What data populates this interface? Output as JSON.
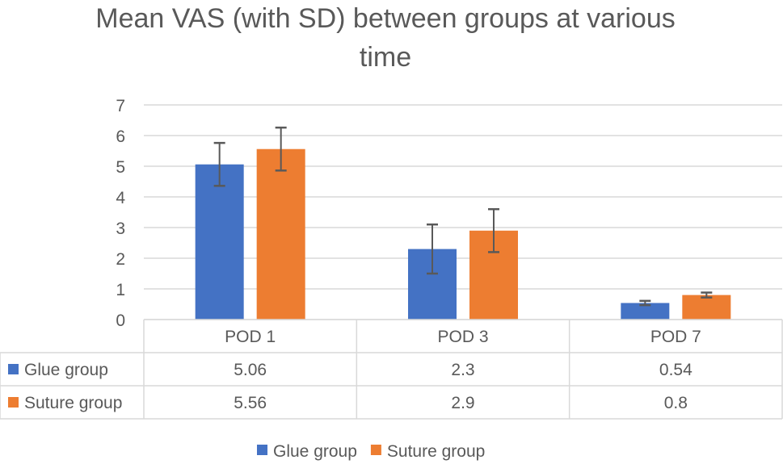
{
  "chart_data": {
    "type": "bar",
    "title": "Mean VAS (with SD) between groups at various time",
    "categories": [
      "POD 1",
      "POD 3",
      "POD 7"
    ],
    "series": [
      {
        "name": "Glue group",
        "values": [
          5.06,
          2.3,
          0.54
        ],
        "sd": [
          0.7,
          0.8,
          0.07
        ],
        "color": "#4472C4"
      },
      {
        "name": "Suture group",
        "values": [
          5.56,
          2.9,
          0.8
        ],
        "sd": [
          0.7,
          0.7,
          0.08
        ],
        "color": "#ED7D31"
      }
    ],
    "ylim": [
      0,
      7
    ],
    "yticks": [
      0,
      1,
      2,
      3,
      4,
      5,
      6,
      7
    ],
    "grid": true,
    "data_table": true,
    "legend": "bottom"
  }
}
